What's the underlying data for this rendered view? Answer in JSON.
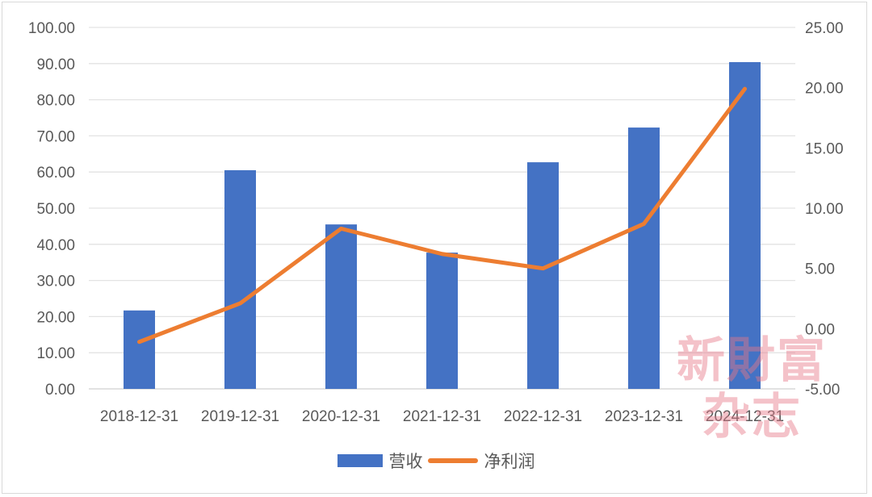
{
  "chart_data": {
    "type": "bar",
    "title": "",
    "xlabel": "",
    "ylabel": "",
    "categories": [
      "2018-12-31",
      "2019-12-31",
      "2020-12-31",
      "2021-12-31",
      "2022-12-31",
      "2023-12-31",
      "2024-12-31"
    ],
    "series": [
      {
        "name": "营收",
        "type": "bar",
        "axis": "left",
        "color": "#4472c4",
        "values": [
          21.7,
          60.5,
          45.5,
          37.7,
          62.7,
          72.3,
          90.4
        ]
      },
      {
        "name": "净利润",
        "type": "line",
        "axis": "right",
        "color": "#ed7d31",
        "values": [
          -1.1,
          2.1,
          8.3,
          6.2,
          5.0,
          8.7,
          19.9
        ]
      }
    ],
    "ylim": [
      0,
      100
    ],
    "y2lim": [
      -5,
      25
    ],
    "y_ticks": [
      "0.00",
      "10.00",
      "20.00",
      "30.00",
      "40.00",
      "50.00",
      "60.00",
      "70.00",
      "80.00",
      "90.00",
      "100.00"
    ],
    "y2_ticks": [
      "-5.00",
      "0.00",
      "5.00",
      "10.00",
      "15.00",
      "20.00",
      "25.00"
    ],
    "grid": true,
    "legend_position": "bottom"
  },
  "legend": {
    "bar_label": "营收",
    "line_label": "净利润"
  },
  "watermark": {
    "line1": "新財富",
    "line2": "杂志"
  }
}
